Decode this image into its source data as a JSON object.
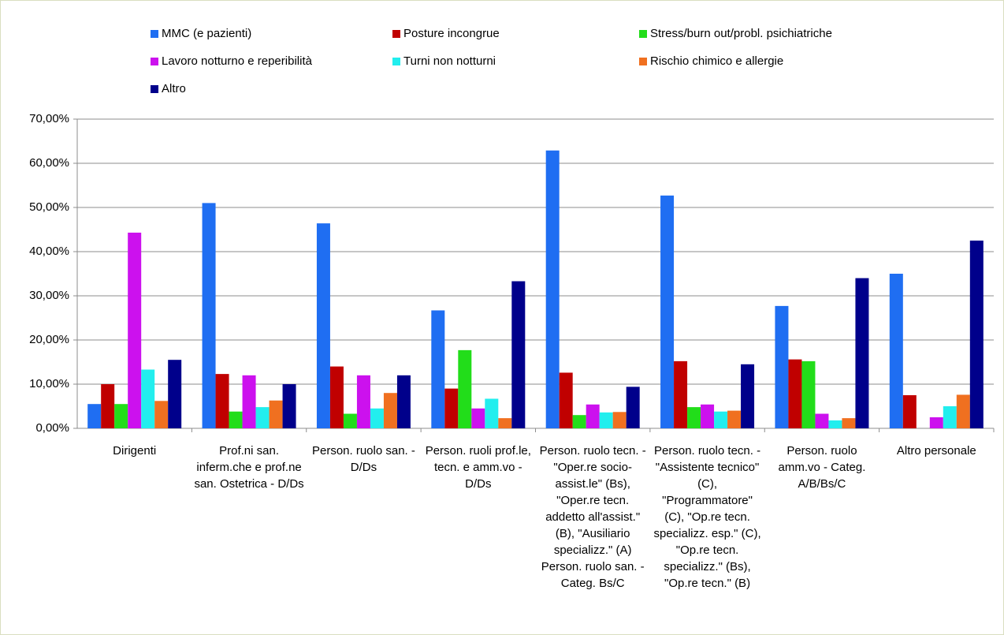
{
  "chart_data": {
    "type": "bar",
    "categories": [
      "Dirigenti",
      "Prof.ni san. inferm.che e prof.ne san. Ostetrica - D/Ds",
      "Person. ruolo san. - D/Ds",
      "Person. ruoli prof.le, tecn. e amm.vo - D/Ds",
      "Person. ruolo tecn. - \"Oper.re socio-assist.le\" (Bs), \"Oper.re tecn. addetto all'assist.\" (B), \"Ausiliario specializz.\" (A) Person. ruolo san. - Categ. Bs/C",
      "Person. ruolo tecn. - \"Assistente tecnico\" (C), \"Programmatore\" (C), \"Op.re tecn. specializz. esp.\" (C), \"Op.re tecn. specializz.\" (Bs), \"Op.re tecn.\" (B)",
      "Person. ruolo amm.vo - Categ. A/B/Bs/C",
      "Altro personale"
    ],
    "series": [
      {
        "name": "MMC (e pazienti)",
        "color": "#1f6ef2",
        "values": [
          5.5,
          51,
          46.4,
          26.7,
          62.9,
          52.7,
          27.7,
          35
        ]
      },
      {
        "name": "Posture incongrue",
        "color": "#c00000",
        "values": [
          10,
          12.3,
          14,
          9,
          12.6,
          15.2,
          15.6,
          7.5
        ]
      },
      {
        "name": "Stress/burn out/probl. psichiatriche",
        "color": "#22dd1a",
        "values": [
          5.5,
          3.8,
          3.3,
          17.7,
          3,
          4.8,
          15.2,
          0
        ]
      },
      {
        "name": "Lavoro notturno e reperibilità",
        "color": "#cc11ee",
        "values": [
          44.3,
          12,
          12,
          4.5,
          5.4,
          5.4,
          3.3,
          2.5
        ]
      },
      {
        "name": "Turni non notturni",
        "color": "#22eeee",
        "values": [
          13.3,
          4.8,
          4.5,
          6.7,
          3.6,
          3.8,
          1.8,
          5
        ]
      },
      {
        "name": "Rischio chimico e allergie",
        "color": "#f07020",
        "values": [
          6.2,
          6.3,
          8,
          2.3,
          3.7,
          4,
          2.3,
          7.6
        ]
      },
      {
        "name": "Altro",
        "color": "#00008b",
        "values": [
          15.5,
          10,
          12,
          33.3,
          9.4,
          14.5,
          34,
          42.5
        ]
      }
    ],
    "ylim": [
      0,
      70
    ],
    "yticks": [
      {
        "value": 0,
        "label": "0,00%"
      },
      {
        "value": 10,
        "label": "10,00%"
      },
      {
        "value": 20,
        "label": "20,00%"
      },
      {
        "value": 30,
        "label": "30,00%"
      },
      {
        "value": 40,
        "label": "40,00%"
      },
      {
        "value": 50,
        "label": "50,00%"
      },
      {
        "value": 60,
        "label": "60,00%"
      },
      {
        "value": 70,
        "label": "70,00%"
      }
    ],
    "grid": true,
    "legend": "top"
  }
}
